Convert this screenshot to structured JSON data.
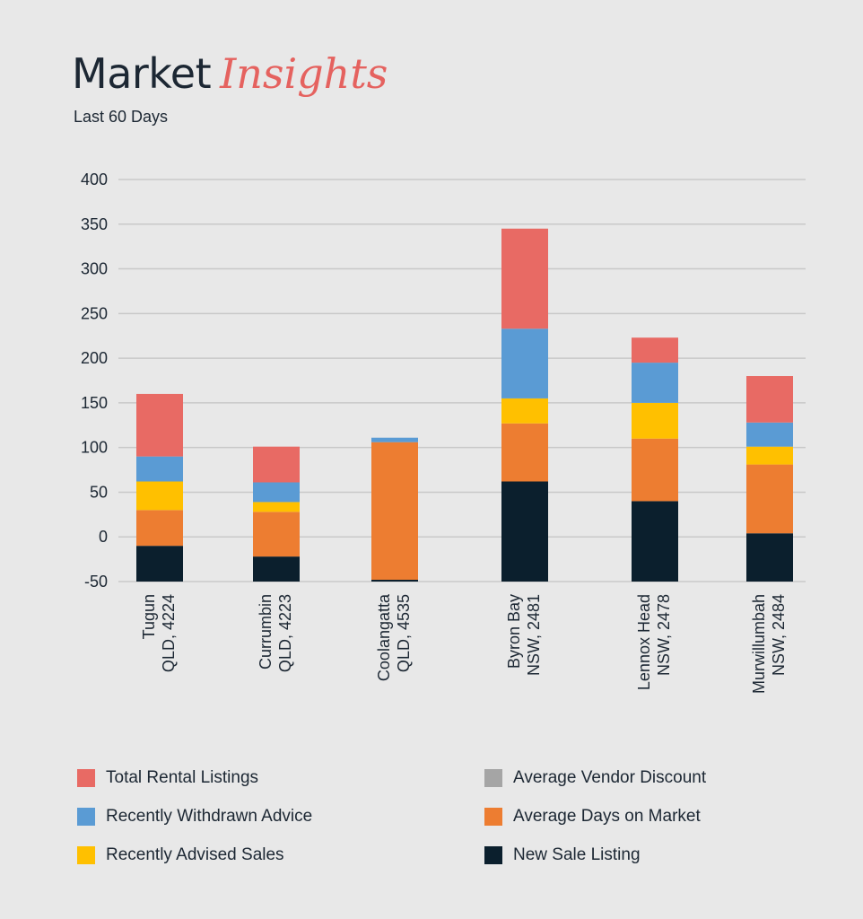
{
  "header": {
    "title_plain": "Market",
    "title_accent": "Insights",
    "subtitle": "Last 60 Days"
  },
  "colors": {
    "background": "#e8e8e8",
    "total_rental": "#e86a64",
    "withdrawn": "#5a9bd4",
    "advised_sales": "#ffc000",
    "vendor_discount": "#a5a5a5",
    "days_on_market": "#ed7d31",
    "new_sale": "#0b1f2d"
  },
  "legend": [
    {
      "label": "Total Rental Listings",
      "color": "#e86a64"
    },
    {
      "label": "Average Vendor Discount",
      "color": "#a5a5a5"
    },
    {
      "label": "Recently Withdrawn Advice",
      "color": "#5a9bd4"
    },
    {
      "label": "Average Days on Market",
      "color": "#ed7d31"
    },
    {
      "label": "Recently Advised Sales",
      "color": "#ffc000"
    },
    {
      "label": "New Sale Listing",
      "color": "#0b1f2d"
    }
  ],
  "chart_data": {
    "type": "bar",
    "stacked": true,
    "title": "Market Insights",
    "subtitle": "Last 60 Days",
    "ylim": [
      -50,
      400
    ],
    "yticks": [
      -50,
      0,
      50,
      100,
      150,
      200,
      250,
      300,
      350,
      400
    ],
    "grid": true,
    "legend_position": "bottom",
    "categories": [
      [
        "Tugun",
        "QLD, 4224"
      ],
      [
        "Currumbin",
        "QLD, 4223"
      ],
      [
        "Coolangatta",
        "QLD, 4535"
      ],
      [
        "Byron Bay",
        "NSW, 2481"
      ],
      [
        "Lennox Head",
        "NSW, 2478"
      ],
      [
        "Murwillumbah",
        "NSW, 2484"
      ]
    ],
    "series": [
      {
        "name": "New Sale Listing",
        "color": "#0b1f2d",
        "values": [
          -10,
          -22,
          -48,
          62,
          40,
          4
        ]
      },
      {
        "name": "Average Vendor Discount",
        "color": "#a5a5a5",
        "values": [
          0,
          0,
          0,
          0,
          0,
          0
        ]
      },
      {
        "name": "Average Days on Market",
        "color": "#ed7d31",
        "values": [
          40,
          50,
          154,
          65,
          70,
          77
        ]
      },
      {
        "name": "Recently Advised Sales",
        "color": "#ffc000",
        "values": [
          32,
          11,
          0,
          28,
          40,
          20
        ]
      },
      {
        "name": "Recently Withdrawn Advice",
        "color": "#5a9bd4",
        "values": [
          28,
          22,
          5,
          78,
          45,
          27
        ]
      },
      {
        "name": "Total Rental Listings",
        "color": "#e86a64",
        "values": [
          70,
          40,
          0,
          112,
          28,
          52
        ]
      }
    ]
  }
}
